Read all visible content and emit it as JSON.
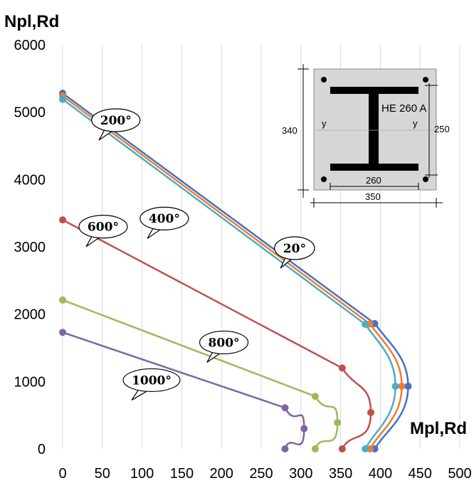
{
  "chart_data": {
    "type": "line",
    "ylabel": "Npl,Rd",
    "xlabel": "Mpl,Rd",
    "xlim": [
      0,
      500
    ],
    "ylim": [
      0,
      6000
    ],
    "x_ticks": [
      "0",
      "50",
      "100",
      "150",
      "200",
      "250",
      "300",
      "350",
      "400",
      "450",
      "500"
    ],
    "y_ticks": [
      "0",
      "1000",
      "2000",
      "3000",
      "4000",
      "5000",
      "6000"
    ],
    "grid": "vertical",
    "series": [
      {
        "name": "20°",
        "color": "#4472C4",
        "marker_points": [
          [
            0,
            5280
          ],
          [
            393,
            1860
          ],
          [
            435,
            930
          ],
          [
            393,
            0
          ]
        ]
      },
      {
        "name": "200°",
        "color": "#ED7D31",
        "marker_points": [
          [
            0,
            5240
          ],
          [
            387,
            1855
          ],
          [
            427,
            930
          ],
          [
            387,
            0
          ]
        ]
      },
      {
        "name": "400°",
        "color": "#4BACC6",
        "marker_points": [
          [
            0,
            5190
          ],
          [
            381,
            1850
          ],
          [
            419,
            930
          ],
          [
            381,
            0
          ]
        ]
      },
      {
        "name": "600°",
        "color": "#C0504D",
        "marker_points": [
          [
            0,
            3400
          ],
          [
            352,
            1200
          ],
          [
            388,
            540
          ],
          [
            352,
            0
          ]
        ]
      },
      {
        "name": "800°",
        "color": "#9BBB59",
        "marker_points": [
          [
            0,
            2210
          ],
          [
            318,
            780
          ],
          [
            346,
            390
          ],
          [
            318,
            0
          ]
        ]
      },
      {
        "name": "1000°",
        "color": "#8064A2",
        "marker_points": [
          [
            0,
            1730
          ],
          [
            280,
            610
          ],
          [
            304,
            300
          ],
          [
            280,
            0
          ]
        ]
      }
    ],
    "annotations": [
      {
        "text": "20°",
        "series": "20°",
        "at": [
          292,
          2980
        ]
      },
      {
        "text": "200°",
        "series": "200°",
        "at": [
          67,
          4880
        ]
      },
      {
        "text": "400°",
        "series": "400°",
        "at": [
          128,
          3420
        ]
      },
      {
        "text": "600°",
        "series": "600°",
        "at": [
          51,
          3300
        ]
      },
      {
        "text": "800°",
        "series": "800°",
        "at": [
          203,
          1580
        ]
      },
      {
        "text": "1000°",
        "series": "1000°",
        "at": [
          112,
          1020
        ]
      }
    ]
  },
  "inset": {
    "section_label": "HE 260 A",
    "axis_left": "y",
    "axis_right": "y",
    "dim_total_height": "340",
    "dim_rebar_height": "250",
    "dim_flange_width": "260",
    "dim_total_width": "350"
  }
}
